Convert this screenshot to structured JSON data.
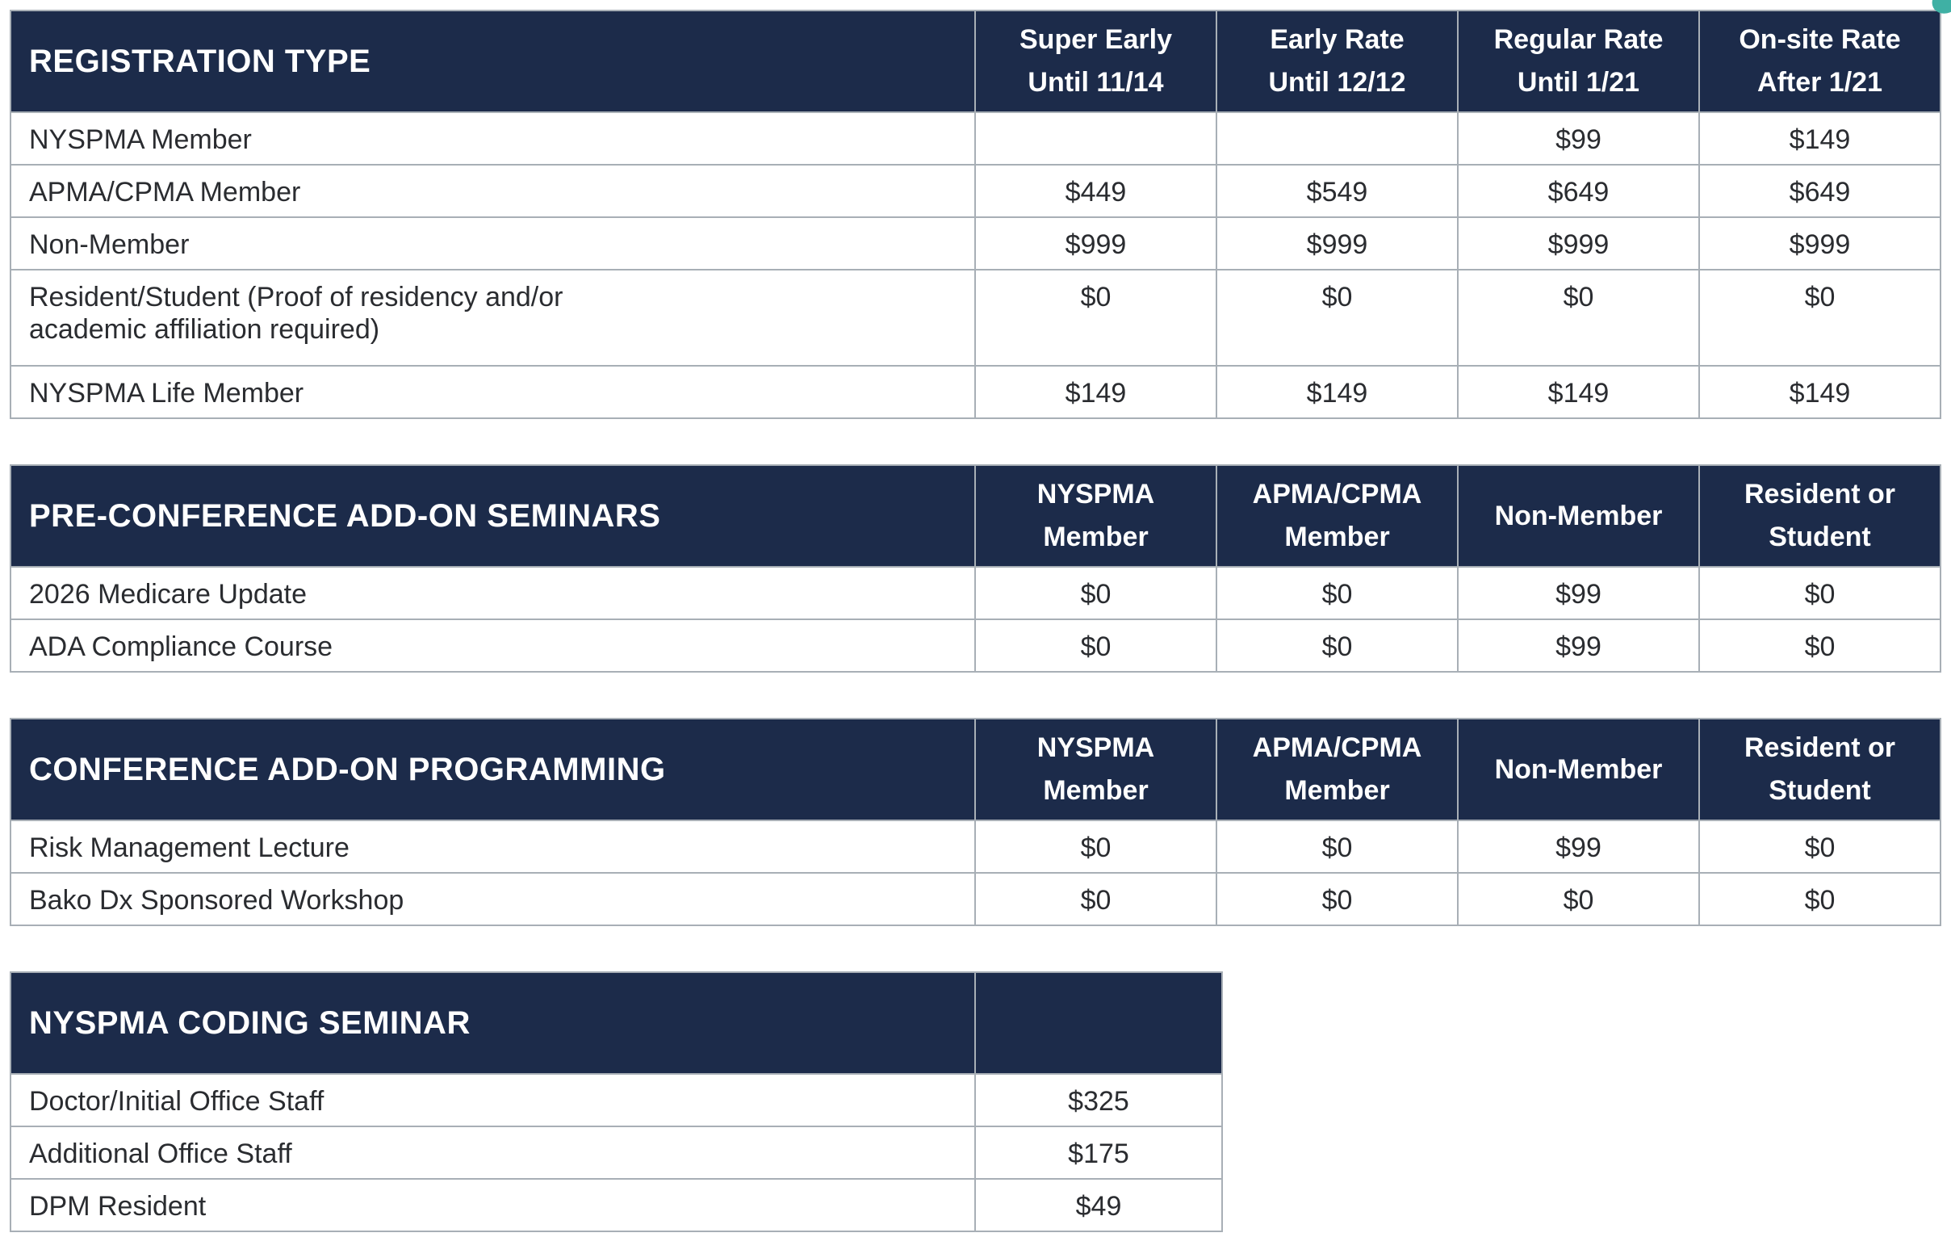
{
  "colors": {
    "header_background": "#1c2b4a",
    "header_text": "#ffffff",
    "body_text": "#2a2c30",
    "border": "#a8afb6",
    "page_background": "#ffffff",
    "corner_mark": "#3fb0a4"
  },
  "corner_mark": {
    "icon": "teal-logo-fragment"
  },
  "tables": [
    {
      "title": "REGISTRATION TYPE",
      "columns": [
        "Super Early\nUntil 11/14",
        "Early Rate\nUntil 12/12",
        "Regular Rate\nUntil 1/21",
        "On-site Rate\nAfter 1/21"
      ],
      "rows": [
        {
          "label": "NYSPMA Member",
          "cells": [
            "",
            "",
            "$99",
            "$149"
          ]
        },
        {
          "label": "APMA/CPMA Member",
          "cells": [
            "$449",
            "$549",
            "$649",
            "$649"
          ]
        },
        {
          "label": "Non-Member",
          "cells": [
            "$999",
            "$999",
            "$999",
            "$999"
          ]
        },
        {
          "label": "Resident/Student (Proof of residency and/or\nacademic affiliation required)",
          "cells": [
            "$0",
            "$0",
            "$0",
            "$0"
          ]
        },
        {
          "label": "NYSPMA Life Member",
          "cells": [
            "$149",
            "$149",
            "$149",
            "$149"
          ]
        }
      ]
    },
    {
      "title": "PRE-CONFERENCE ADD-ON SEMINARS",
      "columns": [
        "NYSPMA\nMember",
        "APMA/CPMA\nMember",
        "Non-Member",
        "Resident or\nStudent"
      ],
      "rows": [
        {
          "label": "2026 Medicare Update",
          "cells": [
            "$0",
            "$0",
            "$99",
            "$0"
          ]
        },
        {
          "label": "ADA Compliance Course",
          "cells": [
            "$0",
            "$0",
            "$99",
            "$0"
          ]
        }
      ]
    },
    {
      "title": "CONFERENCE ADD-ON PROGRAMMING",
      "columns": [
        "NYSPMA\nMember",
        "APMA/CPMA\nMember",
        "Non-Member",
        "Resident or\nStudent"
      ],
      "rows": [
        {
          "label": "Risk Management Lecture",
          "cells": [
            "$0",
            "$0",
            "$99",
            "$0"
          ]
        },
        {
          "label": "Bako Dx Sponsored Workshop",
          "cells": [
            "$0",
            "$0",
            "$0",
            "$0"
          ]
        }
      ]
    },
    {
      "title": "NYSPMA CODING SEMINAR",
      "columns": [
        ""
      ],
      "rows": [
        {
          "label": "Doctor/Initial Office Staff",
          "cells": [
            "$325"
          ]
        },
        {
          "label": "Additional Office Staff",
          "cells": [
            "$175"
          ]
        },
        {
          "label": "DPM Resident",
          "cells": [
            "$49"
          ]
        }
      ]
    }
  ]
}
